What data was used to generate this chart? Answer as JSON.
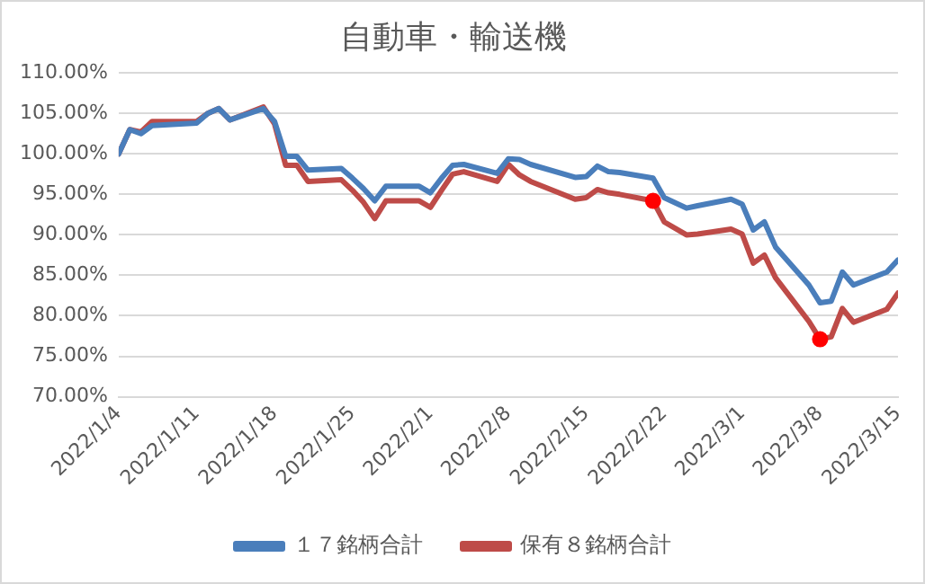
{
  "chart_data": {
    "type": "line",
    "title": "自動車・輸送機",
    "x": [
      "2022-01-04",
      "2022-01-05",
      "2022-01-06",
      "2022-01-07",
      "2022-01-11",
      "2022-01-12",
      "2022-01-13",
      "2022-01-14",
      "2022-01-17",
      "2022-01-18",
      "2022-01-19",
      "2022-01-20",
      "2022-01-21",
      "2022-01-24",
      "2022-01-25",
      "2022-01-26",
      "2022-01-27",
      "2022-01-28",
      "2022-01-31",
      "2022-02-01",
      "2022-02-02",
      "2022-02-03",
      "2022-02-04",
      "2022-02-07",
      "2022-02-08",
      "2022-02-09",
      "2022-02-10",
      "2022-02-14",
      "2022-02-15",
      "2022-02-16",
      "2022-02-17",
      "2022-02-18",
      "2022-02-21",
      "2022-02-22",
      "2022-02-24",
      "2022-02-25",
      "2022-02-28",
      "2022-03-01",
      "2022-03-02",
      "2022-03-03",
      "2022-03-04",
      "2022-03-07",
      "2022-03-08",
      "2022-03-09",
      "2022-03-10",
      "2022-03-11",
      "2022-03-14",
      "2022-03-15"
    ],
    "series": [
      {
        "name": "１７銘柄合計",
        "color": "#4a7ebb",
        "values": [
          100,
          103,
          102.5,
          103.5,
          103.8,
          105,
          105.6,
          104.2,
          105.6,
          104,
          99.7,
          99.7,
          98,
          98.2,
          97,
          95.7,
          94.2,
          96,
          96,
          95.2,
          97,
          98.6,
          98.7,
          97.6,
          99.4,
          99.3,
          98.7,
          97.1,
          97.2,
          98.5,
          97.8,
          97.7,
          97,
          94.6,
          93.3,
          93.6,
          94.4,
          93.8,
          90.6,
          91.6,
          88.5,
          83.8,
          81.6,
          81.8,
          85.4,
          83.8,
          85.4,
          86.9
        ]
      },
      {
        "name": "保有８銘柄合計",
        "color": "#be4b48",
        "values": [
          100,
          103,
          102.7,
          104,
          104,
          105,
          105.6,
          104.2,
          105.8,
          103.7,
          98.6,
          98.6,
          96.6,
          96.8,
          95.5,
          94,
          92,
          94.2,
          94.2,
          93.4,
          95.5,
          97.5,
          97.8,
          96.6,
          98.7,
          97.4,
          96.6,
          94.4,
          94.6,
          95.6,
          95.2,
          95,
          94.2,
          91.6,
          90,
          90.1,
          90.7,
          90.1,
          86.5,
          87.5,
          84.7,
          79.3,
          77.1,
          77.4,
          80.9,
          79.2,
          80.8,
          82.8
        ]
      },
      {
        "type": "scatter",
        "color": "#ff0000",
        "marker": "circle",
        "x": [
          "2022-02-21",
          "2022-03-08"
        ],
        "values": [
          94.2,
          77.1
        ]
      }
    ],
    "xlim": [
      "2022-01-04",
      "2022-03-15"
    ],
    "xticks": [
      {
        "value": "2022-01-04",
        "label": "2022/1/4"
      },
      {
        "value": "2022-01-11",
        "label": "2022/1/11"
      },
      {
        "value": "2022-01-18",
        "label": "2022/1/18"
      },
      {
        "value": "2022-01-25",
        "label": "2022/1/25"
      },
      {
        "value": "2022-02-01",
        "label": "2022/2/1"
      },
      {
        "value": "2022-02-08",
        "label": "2022/2/8"
      },
      {
        "value": "2022-02-15",
        "label": "2022/2/15"
      },
      {
        "value": "2022-02-22",
        "label": "2022/2/22"
      },
      {
        "value": "2022-03-01",
        "label": "2022/3/1"
      },
      {
        "value": "2022-03-08",
        "label": "2022/3/8"
      },
      {
        "value": "2022-03-15",
        "label": "2022/3/15"
      }
    ],
    "ylim": [
      70,
      110
    ],
    "yticks": [
      {
        "value": 70,
        "label": "70.00%"
      },
      {
        "value": 75,
        "label": "75.00%"
      },
      {
        "value": 80,
        "label": "80.00%"
      },
      {
        "value": 85,
        "label": "85.00%"
      },
      {
        "value": 90,
        "label": "90.00%"
      },
      {
        "value": 95,
        "label": "95.00%"
      },
      {
        "value": 100,
        "label": "100.00%"
      },
      {
        "value": 105,
        "label": "105.00%"
      },
      {
        "value": 110,
        "label": "110.00%"
      }
    ],
    "grid": "y",
    "legend": "bottom",
    "marker": "none",
    "line_style": "solid"
  }
}
